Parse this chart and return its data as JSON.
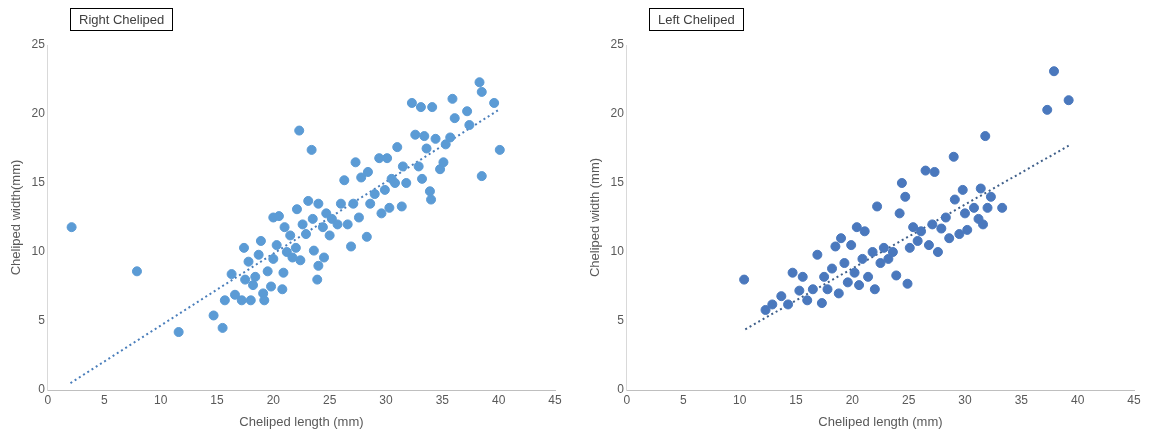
{
  "chart_data": [
    {
      "type": "scatter",
      "title": "Right Cheliped",
      "xlabel": "Cheliped length (mm)",
      "ylabel": "Cheliped width(mm)",
      "xlim": [
        0,
        45
      ],
      "xticks": [
        0,
        5,
        10,
        15,
        20,
        25,
        30,
        35,
        40,
        45
      ],
      "ylim": [
        0,
        25
      ],
      "yticks": [
        0,
        5,
        10,
        15,
        20,
        25
      ],
      "series": [
        {
          "marker": "circle",
          "color": "#5b9bd5",
          "x": [
            2.1,
            7.9,
            11.6,
            14.7,
            15.5,
            15.7,
            16.3,
            16.6,
            17.2,
            17.4,
            17.5,
            17.8,
            18.0,
            18.2,
            18.4,
            18.7,
            18.9,
            19.1,
            19.2,
            19.5,
            19.8,
            20.0,
            20.0,
            20.3,
            20.5,
            20.8,
            20.9,
            21.0,
            21.2,
            21.5,
            21.7,
            22.0,
            22.1,
            22.3,
            22.4,
            22.6,
            22.9,
            23.1,
            23.4,
            23.5,
            23.6,
            23.9,
            24.0,
            24.0,
            24.4,
            24.5,
            24.7,
            25.0,
            25.2,
            25.7,
            26.0,
            26.3,
            26.6,
            26.9,
            27.1,
            27.3,
            27.6,
            27.8,
            28.3,
            28.4,
            28.6,
            29.0,
            29.4,
            29.6,
            29.9,
            30.1,
            30.3,
            30.5,
            30.8,
            31.0,
            31.4,
            31.5,
            31.8,
            32.3,
            32.6,
            32.9,
            33.1,
            33.2,
            33.4,
            33.6,
            33.9,
            34.0,
            34.1,
            34.4,
            34.8,
            35.1,
            35.3,
            35.7,
            35.9,
            36.1,
            37.2,
            37.4,
            38.3,
            38.5,
            38.5,
            39.6,
            40.1
          ],
          "values": [
            11.8,
            8.6,
            4.2,
            5.4,
            4.5,
            6.5,
            8.4,
            6.9,
            6.5,
            10.3,
            8.0,
            9.3,
            6.5,
            7.6,
            8.2,
            9.8,
            10.8,
            7.0,
            6.5,
            8.6,
            7.5,
            9.5,
            12.5,
            10.5,
            12.6,
            7.3,
            8.5,
            11.8,
            10.0,
            11.2,
            9.6,
            10.3,
            13.1,
            18.8,
            9.4,
            12.0,
            11.3,
            13.7,
            17.4,
            12.4,
            10.1,
            8.0,
            9.0,
            13.5,
            11.8,
            9.6,
            12.8,
            11.2,
            12.4,
            12.0,
            13.5,
            15.2,
            12.0,
            10.4,
            13.5,
            16.5,
            12.5,
            15.4,
            11.1,
            15.8,
            13.5,
            14.2,
            16.8,
            12.8,
            14.5,
            16.8,
            13.2,
            15.3,
            15.0,
            17.6,
            13.3,
            16.2,
            15.0,
            20.8,
            18.5,
            16.2,
            20.5,
            15.3,
            18.4,
            17.5,
            14.4,
            13.8,
            20.5,
            18.2,
            16.0,
            16.5,
            17.8,
            18.3,
            21.1,
            19.7,
            20.2,
            19.2,
            22.3,
            21.6,
            15.5,
            20.8,
            17.4
          ]
        },
        {
          "type": "line",
          "marker": "none",
          "color": "#4a7ebb",
          "line_style": "dotted",
          "x": [
            2,
            40
          ],
          "values": [
            0.5,
            20.3
          ]
        }
      ]
    },
    {
      "type": "scatter",
      "title": "Left Cheliped",
      "xlabel": "Cheliped length (mm)",
      "ylabel": "Cheliped width (mm)",
      "xlim": [
        0,
        45
      ],
      "xticks": [
        0,
        5,
        10,
        15,
        20,
        25,
        30,
        35,
        40,
        45
      ],
      "ylim": [
        0,
        25
      ],
      "yticks": [
        0,
        5,
        10,
        15,
        20,
        25
      ],
      "series": [
        {
          "marker": "circle",
          "color": "#4a78bd",
          "x": [
            10.4,
            12.3,
            12.9,
            13.7,
            14.3,
            14.7,
            15.3,
            15.6,
            16.0,
            16.5,
            16.9,
            17.3,
            17.5,
            17.8,
            18.2,
            18.5,
            18.8,
            19.0,
            19.3,
            19.6,
            19.9,
            20.2,
            20.4,
            20.6,
            20.9,
            21.1,
            21.4,
            21.8,
            22.0,
            22.2,
            22.5,
            22.8,
            23.2,
            23.6,
            23.9,
            24.2,
            24.4,
            24.7,
            24.9,
            25.1,
            25.4,
            25.8,
            26.1,
            26.5,
            26.8,
            27.1,
            27.3,
            27.6,
            27.9,
            28.3,
            28.6,
            29.0,
            29.1,
            29.5,
            29.8,
            30.0,
            30.2,
            30.8,
            31.2,
            31.4,
            31.6,
            31.8,
            32.0,
            32.3,
            33.3,
            37.3,
            37.9,
            39.2
          ],
          "values": [
            8.0,
            5.8,
            6.2,
            6.8,
            6.2,
            8.5,
            7.2,
            8.2,
            6.5,
            7.3,
            9.8,
            6.3,
            8.2,
            7.3,
            8.8,
            10.4,
            7.0,
            11.0,
            9.2,
            7.8,
            10.5,
            8.5,
            11.8,
            7.6,
            9.5,
            11.5,
            8.2,
            10.0,
            7.3,
            13.3,
            9.2,
            10.3,
            9.5,
            10.0,
            8.3,
            12.8,
            15.0,
            14.0,
            7.7,
            10.3,
            11.8,
            10.8,
            11.5,
            15.9,
            10.5,
            12.0,
            15.8,
            10.0,
            11.7,
            12.5,
            11.0,
            16.9,
            13.8,
            11.3,
            14.5,
            12.8,
            11.6,
            13.2,
            12.4,
            14.6,
            12.0,
            18.4,
            13.2,
            14.0,
            13.2,
            20.3,
            23.1,
            21.0
          ]
        },
        {
          "type": "line",
          "marker": "none",
          "color": "#3f5f8a",
          "line_style": "dotted",
          "x": [
            10.5,
            39.2
          ],
          "values": [
            4.4,
            17.7
          ]
        }
      ]
    }
  ]
}
